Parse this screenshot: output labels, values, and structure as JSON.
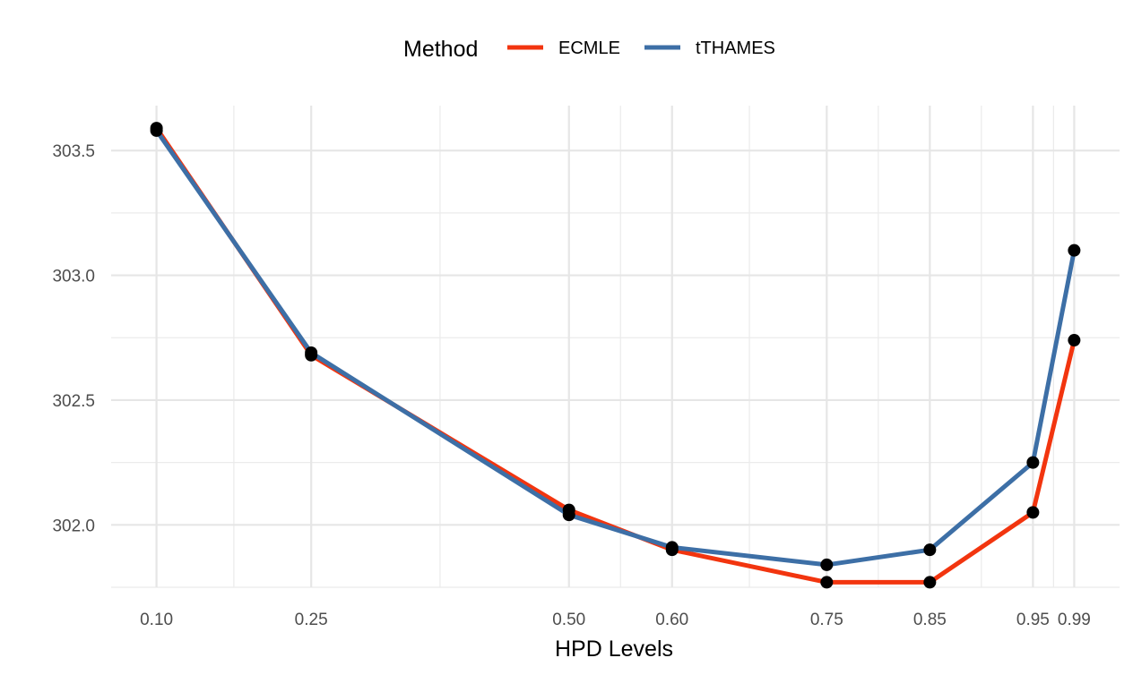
{
  "chart_data": {
    "type": "line",
    "xlabel": "HPD Levels",
    "ylabel": "",
    "x": [
      0.1,
      0.25,
      0.5,
      0.6,
      0.75,
      0.85,
      0.95,
      0.99
    ],
    "x_tick_labels": [
      "0.10",
      "0.25",
      "0.50",
      "0.60",
      "0.75",
      "0.85",
      "0.95",
      "0.99"
    ],
    "x_minor_ticks": [
      0.175,
      0.375,
      0.55,
      0.675,
      0.8,
      0.9,
      0.97
    ],
    "xlim": [
      0.056,
      1.034
    ],
    "ylim": [
      301.75,
      303.68
    ],
    "y_ticks": [
      302.0,
      302.5,
      303.0,
      303.5
    ],
    "y_tick_labels": [
      "302.0",
      "302.5",
      "303.0",
      "303.5"
    ],
    "y_minor_ticks": [
      301.75,
      302.25,
      302.75,
      303.25
    ],
    "grid": true,
    "legend": {
      "title": "Method",
      "position": "top"
    },
    "series": [
      {
        "name": "ECMLE",
        "color": "#F2350F",
        "values": [
          303.59,
          302.68,
          302.06,
          301.9,
          301.77,
          301.77,
          302.05,
          302.74
        ]
      },
      {
        "name": "tTHAMES",
        "color": "#3D6FA6",
        "values": [
          303.58,
          302.69,
          302.04,
          301.91,
          301.84,
          301.9,
          302.25,
          303.1
        ]
      }
    ],
    "point_color": "#000000"
  }
}
